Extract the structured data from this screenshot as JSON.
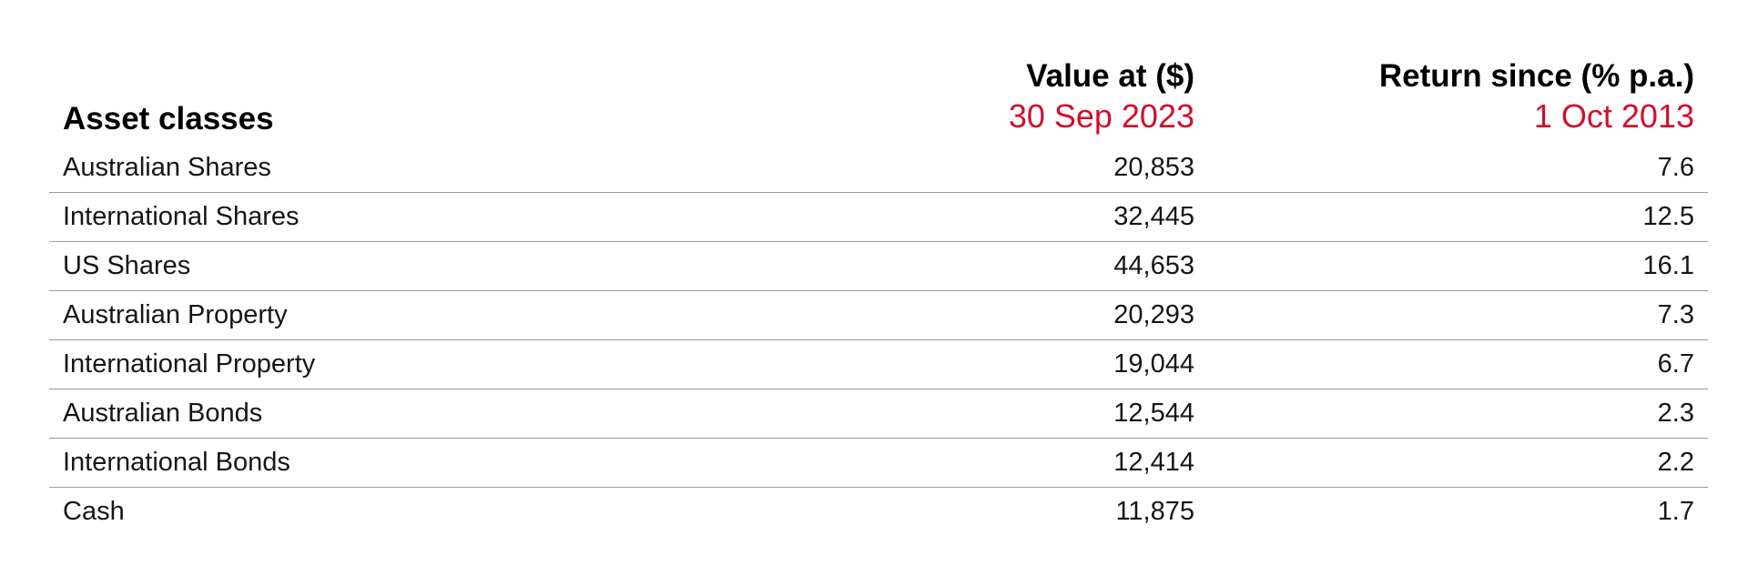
{
  "header": {
    "asset_label": "Asset classes",
    "value_title": "Value at ($)",
    "value_date": "30 Sep 2023",
    "return_title": "Return since (% p.a.)",
    "return_date": "1 Oct 2013"
  },
  "colors": {
    "accent": "#d0102f",
    "text": "#111111",
    "divider": "#9a9a9a"
  },
  "rows": [
    {
      "name": "Australian Shares",
      "value": "20,853",
      "return": "7.6"
    },
    {
      "name": "International Shares",
      "value": "32,445",
      "return": "12.5"
    },
    {
      "name": "US Shares",
      "value": "44,653",
      "return": "16.1"
    },
    {
      "name": "Australian Property",
      "value": "20,293",
      "return": "7.3"
    },
    {
      "name": "International Property",
      "value": "19,044",
      "return": "6.7"
    },
    {
      "name": "Australian Bonds",
      "value": "12,544",
      "return": "2.3"
    },
    {
      "name": "International Bonds",
      "value": "12,414",
      "return": "2.2"
    },
    {
      "name": "Cash",
      "value": "11,875",
      "return": "1.7"
    }
  ]
}
